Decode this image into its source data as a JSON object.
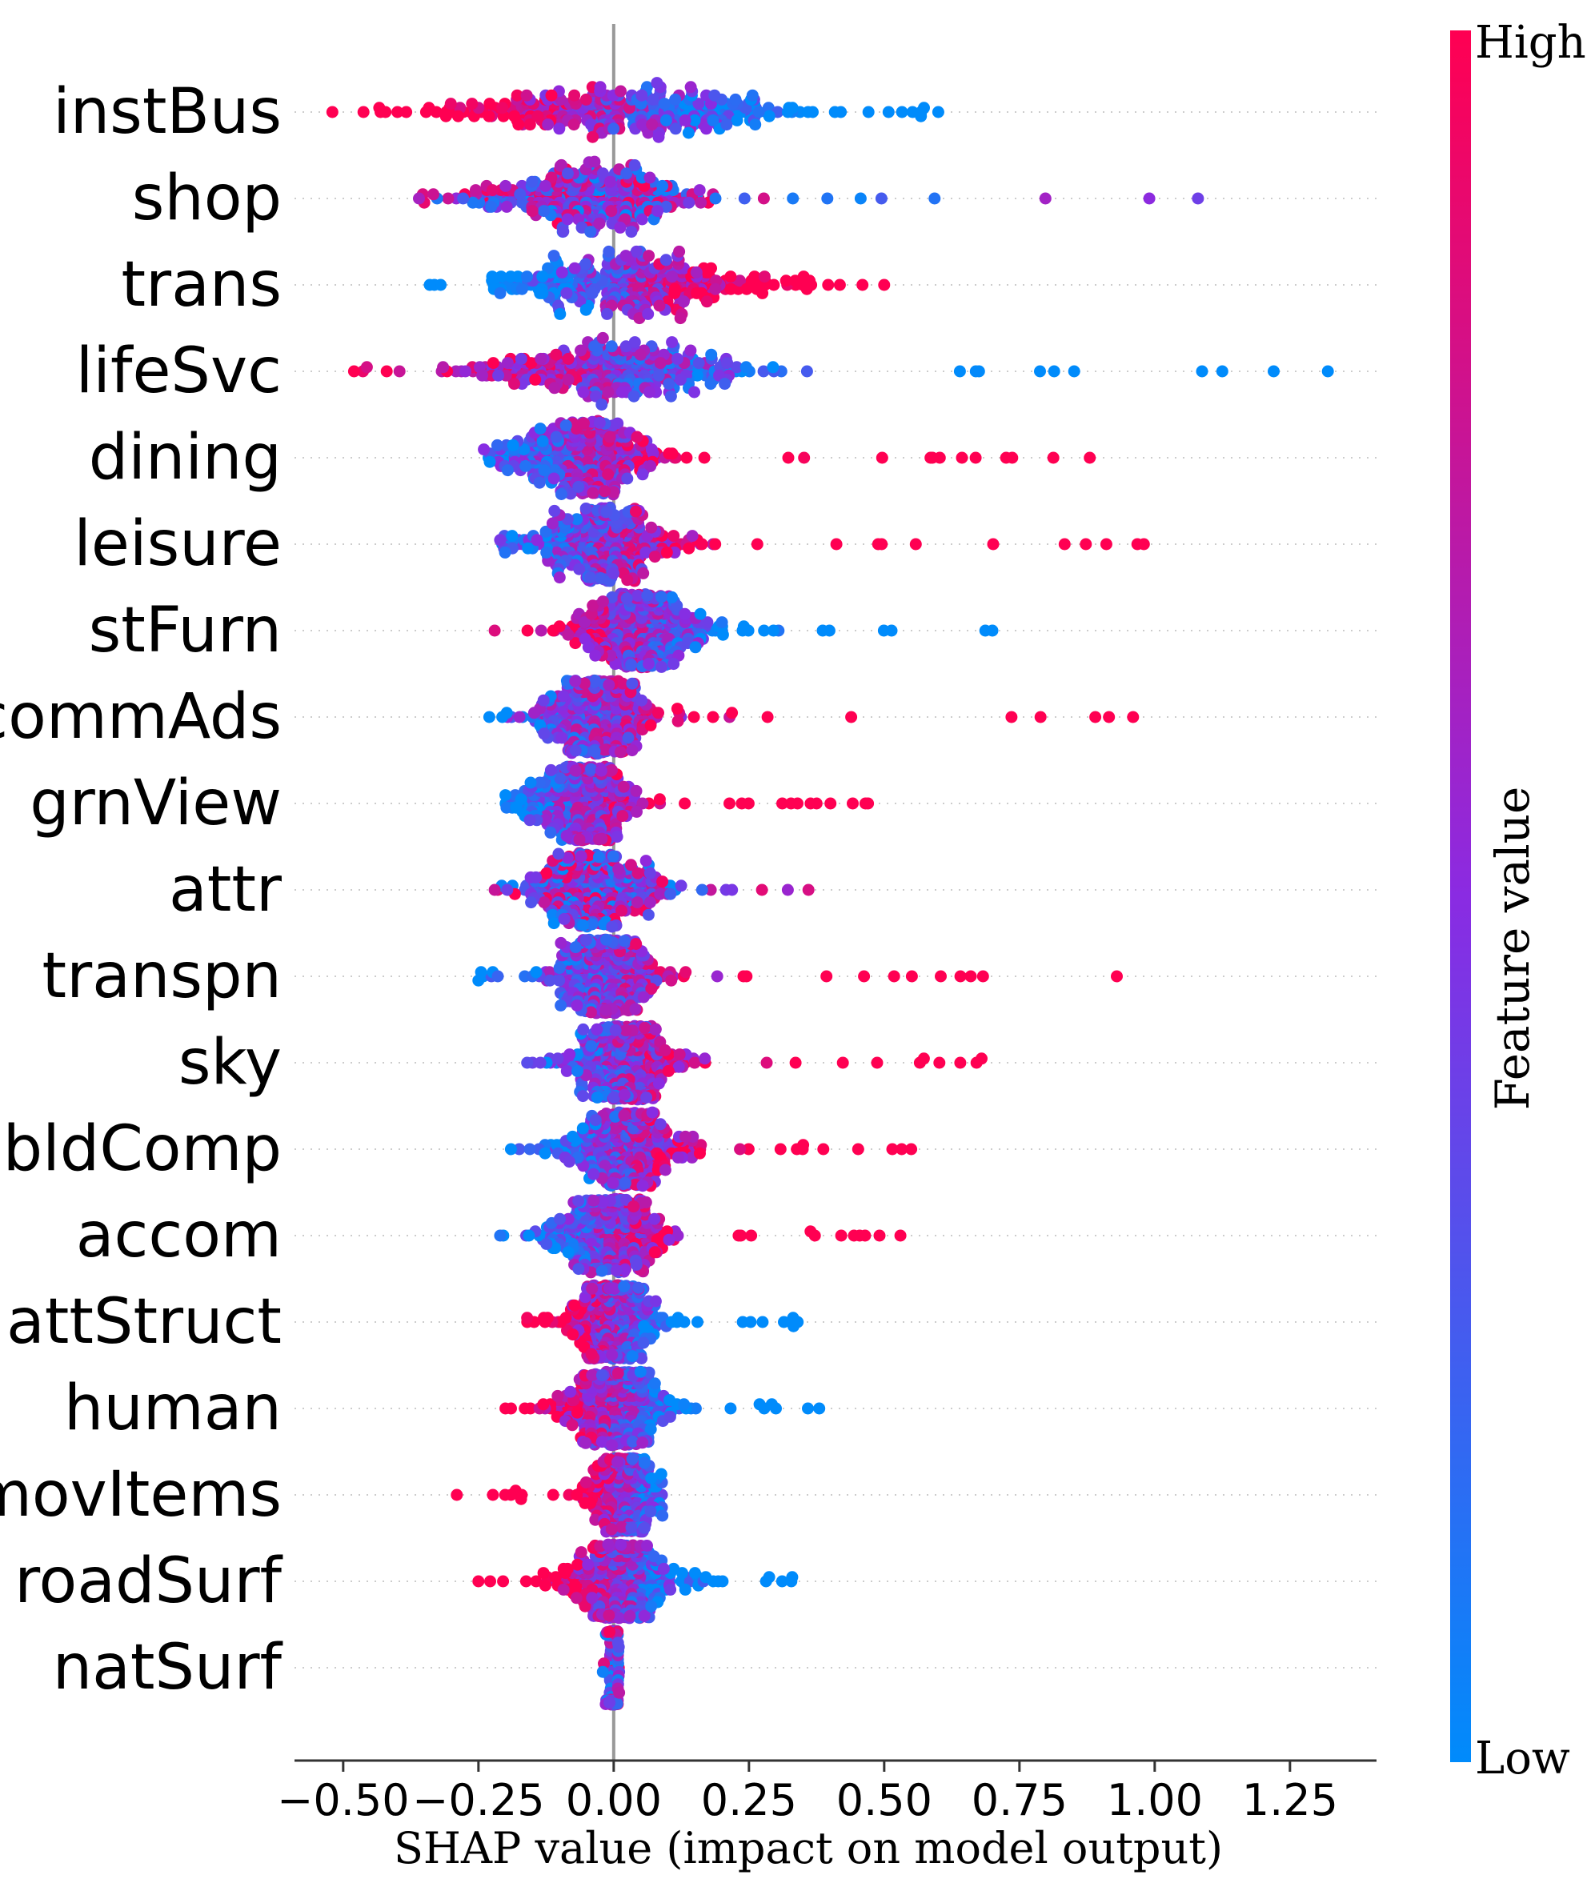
{
  "chart_data": {
    "type": "scatter",
    "subtype": "shap-beeswarm",
    "xlabel": "SHAP value (impact on model output)",
    "xticks": [
      -0.5,
      -0.25,
      0.0,
      0.25,
      0.5,
      0.75,
      1.0,
      1.25
    ],
    "xtick_labels": [
      "−0.50",
      "−0.25",
      "0.00",
      "0.25",
      "0.50",
      "0.75",
      "1.00",
      "1.25"
    ],
    "xlim": [
      -0.59,
      1.41
    ],
    "colorbar": {
      "title": "Feature value",
      "high_label": "High",
      "low_label": "Low",
      "high_color": "#ff0052",
      "mid_color": "#8a2be2",
      "low_color": "#008bfb"
    },
    "features": [
      {
        "name": "instBus",
        "min": -0.52,
        "max": 0.6,
        "center": 0.02,
        "spread": 0.16,
        "high_side": "left"
      },
      {
        "name": "shop",
        "min": -0.36,
        "max": 1.08,
        "center": -0.05,
        "spread": 0.1,
        "high_side": "mixed"
      },
      {
        "name": "trans",
        "min": -0.34,
        "max": 0.5,
        "center": 0.03,
        "spread": 0.12,
        "high_side": "right"
      },
      {
        "name": "lifeSvc",
        "min": -0.48,
        "max": 1.32,
        "center": 0.0,
        "spread": 0.13,
        "high_side": "left"
      },
      {
        "name": "dining",
        "min": -0.24,
        "max": 0.88,
        "center": -0.06,
        "spread": 0.07,
        "high_side": "right"
      },
      {
        "name": "leisure",
        "min": -0.21,
        "max": 0.98,
        "center": -0.02,
        "spread": 0.07,
        "high_side": "right"
      },
      {
        "name": "stFurn",
        "min": -0.22,
        "max": 0.7,
        "center": 0.05,
        "spread": 0.06,
        "high_side": "left"
      },
      {
        "name": "commAds",
        "min": -0.23,
        "max": 0.96,
        "center": -0.03,
        "spread": 0.06,
        "high_side": "right"
      },
      {
        "name": "grnView",
        "min": -0.2,
        "max": 0.47,
        "center": -0.06,
        "spread": 0.05,
        "high_side": "right"
      },
      {
        "name": "attr",
        "min": -0.22,
        "max": 0.36,
        "center": -0.03,
        "spread": 0.06,
        "high_side": "mixed"
      },
      {
        "name": "transpn",
        "min": -0.25,
        "max": 0.93,
        "center": -0.01,
        "spread": 0.05,
        "high_side": "right"
      },
      {
        "name": "sky",
        "min": -0.16,
        "max": 0.68,
        "center": 0.02,
        "spread": 0.05,
        "high_side": "right"
      },
      {
        "name": "bldComp",
        "min": -0.19,
        "max": 0.55,
        "center": 0.02,
        "spread": 0.05,
        "high_side": "right"
      },
      {
        "name": "accom",
        "min": -0.21,
        "max": 0.53,
        "center": -0.01,
        "spread": 0.05,
        "high_side": "right"
      },
      {
        "name": "attStruct",
        "min": -0.16,
        "max": 0.34,
        "center": 0.0,
        "spread": 0.04,
        "high_side": "left"
      },
      {
        "name": "human",
        "min": -0.2,
        "max": 0.38,
        "center": 0.0,
        "spread": 0.05,
        "high_side": "left"
      },
      {
        "name": "movItems",
        "min": -0.29,
        "max": 0.09,
        "center": 0.02,
        "spread": 0.03,
        "high_side": "left"
      },
      {
        "name": "roadSurf",
        "min": -0.25,
        "max": 0.33,
        "center": 0.01,
        "spread": 0.05,
        "high_side": "left"
      },
      {
        "name": "natSurf",
        "min": -0.02,
        "max": 0.01,
        "center": 0.0,
        "spread": 0.004,
        "high_side": "mixed"
      }
    ]
  }
}
